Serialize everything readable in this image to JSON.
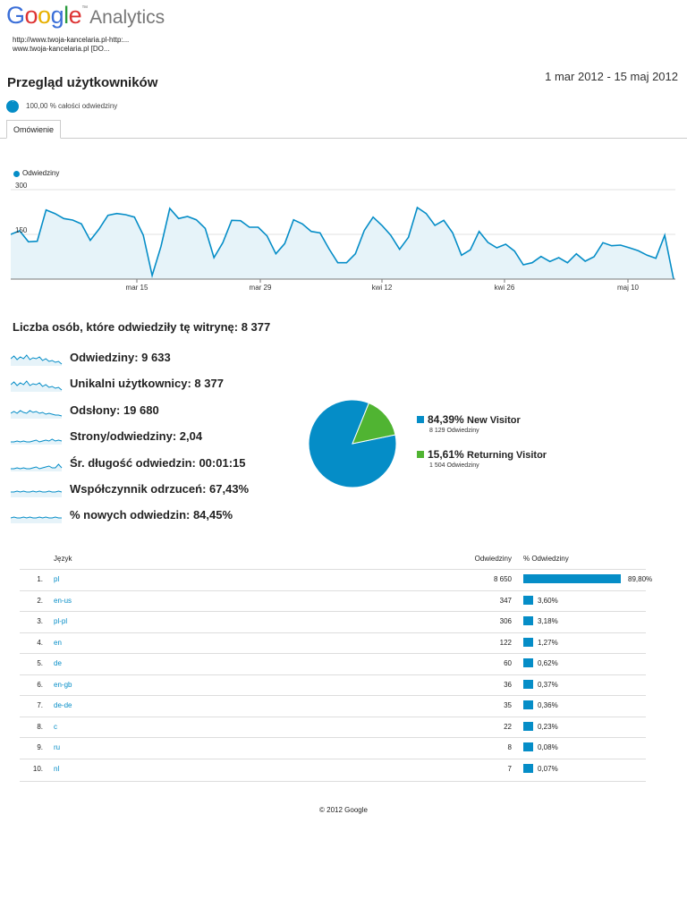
{
  "header": {
    "logo_google": "Google",
    "logo_analytics": "Analytics",
    "site_line1": "http://www.twoja-kancelaria.pl-http:...",
    "site_line2": "www.twoja-kancelaria.pl [DO...",
    "title": "Przegląd użytkowników",
    "date_range": "1 mar 2012 - 15 maj 2012",
    "segment_label": "100,00 % całości odwiedziny",
    "tab_label": "Omówienie"
  },
  "colors": {
    "accent": "#058dc7",
    "area_fill": "#e6f3f9",
    "green": "#50b432"
  },
  "chart_data": {
    "type": "area",
    "series": [
      {
        "name": "Odwiedziny",
        "values": [
          150,
          162,
          125,
          127,
          232,
          220,
          203,
          198,
          185,
          130,
          168,
          214,
          220,
          216,
          208,
          147,
          12,
          110,
          237,
          203,
          210,
          199,
          170,
          72,
          122,
          197,
          196,
          174,
          174,
          145,
          85,
          119,
          199,
          185,
          160,
          155,
          102,
          55,
          55,
          85,
          163,
          208,
          180,
          147,
          100,
          140,
          240,
          220,
          180,
          197,
          155,
          80,
          98,
          160,
          123,
          105,
          117,
          94,
          48,
          55,
          76,
          59,
          72,
          55,
          85,
          60,
          75,
          122,
          112,
          114,
          105,
          95,
          80,
          70,
          147,
          0
        ]
      }
    ],
    "ylabels": [
      "300",
      "150"
    ],
    "xlabels": [
      "mar 15",
      "mar 29",
      "kwi 12",
      "kwi 26",
      "maj 10"
    ],
    "ylim": [
      0,
      300
    ],
    "legend": "top-left",
    "grid": true
  },
  "summary": {
    "headline": "Liczba osób, które odwiedziły tę witrynę: 8 377",
    "metrics": [
      {
        "label": "Odwiedziny: 9 633",
        "icon": "sparkline-icon"
      },
      {
        "label": "Unikalni użytkownicy: 8 377",
        "icon": "sparkline-icon"
      },
      {
        "label": "Odsłony: 19 680",
        "icon": "sparkline-icon"
      },
      {
        "label": "Strony/odwiedziny: 2,04",
        "icon": "sparkline-icon"
      },
      {
        "label": "Śr. długość odwiedzin: 00:01:15",
        "icon": "sparkline-icon"
      },
      {
        "label": "Współczynnik odrzuceń: 67,43%",
        "icon": "sparkline-icon"
      },
      {
        "label": "% nowych odwiedzin: 84,45%",
        "icon": "sparkline-icon"
      }
    ]
  },
  "pie": {
    "type": "pie",
    "slices": [
      {
        "pct_label": "84,39%",
        "name": "New Visitor",
        "sub": "8 129 Odwiedziny",
        "value": 84.39,
        "color": "#058dc7"
      },
      {
        "pct_label": "15,61%",
        "name": "Returning Visitor",
        "sub": "1 504 Odwiedziny",
        "value": 15.61,
        "color": "#50b432"
      }
    ]
  },
  "table": {
    "headers": {
      "language": "Język",
      "visits": "Odwiedziny",
      "pct": "% Odwiedziny"
    },
    "rows": [
      {
        "n": "1.",
        "lang": "pl",
        "visits": "8 650",
        "pct": "89,80%",
        "value": 89.8
      },
      {
        "n": "2.",
        "lang": "en-us",
        "visits": "347",
        "pct": "3,60%",
        "value": 3.6
      },
      {
        "n": "3.",
        "lang": "pl-pl",
        "visits": "306",
        "pct": "3,18%",
        "value": 3.18
      },
      {
        "n": "4.",
        "lang": "en",
        "visits": "122",
        "pct": "1,27%",
        "value": 1.27
      },
      {
        "n": "5.",
        "lang": "de",
        "visits": "60",
        "pct": "0,62%",
        "value": 0.62
      },
      {
        "n": "6.",
        "lang": "en-gb",
        "visits": "36",
        "pct": "0,37%",
        "value": 0.37
      },
      {
        "n": "7.",
        "lang": "de-de",
        "visits": "35",
        "pct": "0,36%",
        "value": 0.36
      },
      {
        "n": "8.",
        "lang": "c",
        "visits": "22",
        "pct": "0,23%",
        "value": 0.23
      },
      {
        "n": "9.",
        "lang": "ru",
        "visits": "8",
        "pct": "0,08%",
        "value": 0.08
      },
      {
        "n": "10.",
        "lang": "nl",
        "visits": "7",
        "pct": "0,07%",
        "value": 0.07
      }
    ]
  },
  "footer": "© 2012 Google"
}
